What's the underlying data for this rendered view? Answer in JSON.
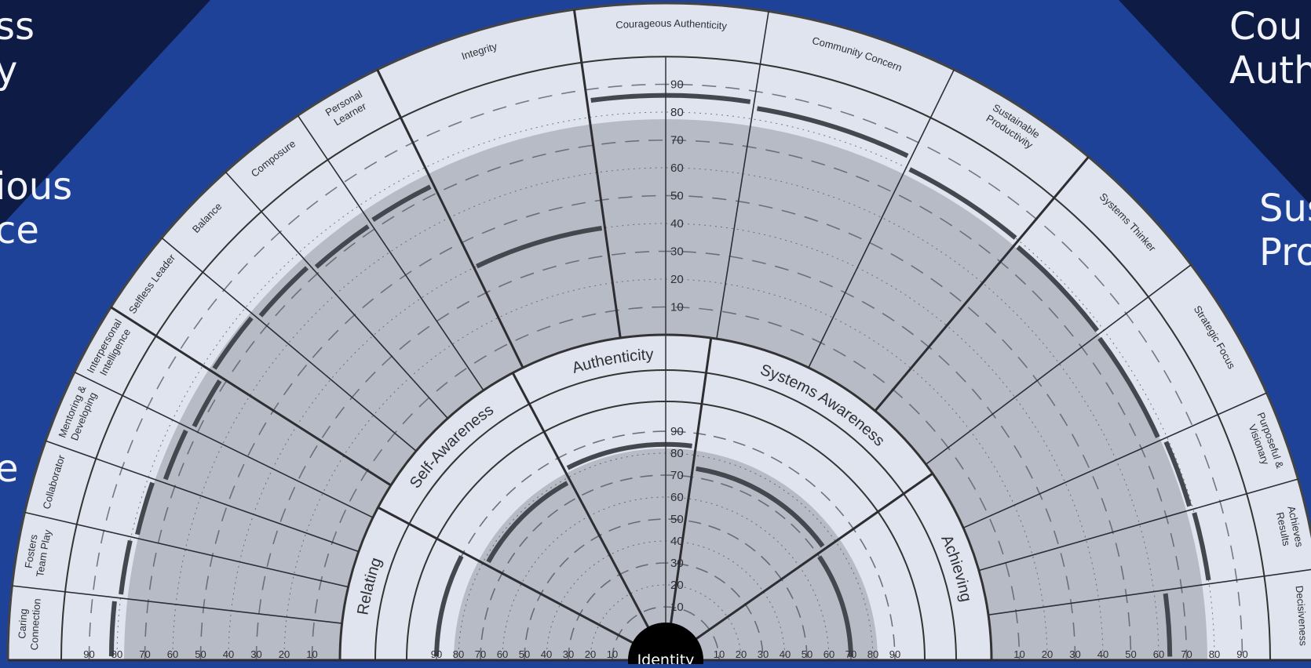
{
  "colors": {
    "background": "#1f4299",
    "corner_panel": "#0d1b45",
    "wheel_band": "#dfe4ee",
    "score_zone": "#b6bbc6",
    "highlight_band": "#c5cad4",
    "ink": "#2f2f34",
    "center_dot": "#000000",
    "label_text": "#f2f4fa"
  },
  "side_labels": {
    "left": [
      "ss\ny",
      "ious\nce",
      "e"
    ],
    "right": [
      "Cou\nAuth",
      "Sus\nPro"
    ]
  },
  "center": {
    "label": "Identity"
  },
  "inner_ring": {
    "dimensions": [
      {
        "label": "Relating"
      },
      {
        "label": "Self-Awareness"
      },
      {
        "label": "Authenticity"
      },
      {
        "label": "Systems Awareness"
      },
      {
        "label": "Achieving"
      }
    ],
    "tick_labels": [
      "90",
      "80",
      "70",
      "60",
      "50",
      "40",
      "30",
      "20",
      "10"
    ]
  },
  "outer_ring": {
    "competencies": [
      {
        "label": "Caring\nConnection"
      },
      {
        "label": "Fosters\nTeam Play"
      },
      {
        "label": "Collaborator"
      },
      {
        "label": "Mentoring &\nDeveloping"
      },
      {
        "label": "Interpersonal\nIntelligence"
      },
      {
        "label": "Selfless Leader"
      },
      {
        "label": "Balance"
      },
      {
        "label": "Composure"
      },
      {
        "label": "Personal\nLearner"
      },
      {
        "label": "Integrity"
      },
      {
        "label": "Courageous Authenticity"
      },
      {
        "label": "Community Concern"
      },
      {
        "label": "Sustainable\nProductivity"
      },
      {
        "label": "Systems Thinker"
      },
      {
        "label": "Strategic Focus"
      },
      {
        "label": "Purposeful &\nVisionary"
      },
      {
        "label": "Achieves\nResults"
      },
      {
        "label": "Decisiveness"
      }
    ],
    "tick_labels": [
      "90",
      "80",
      "70",
      "60",
      "50",
      "40",
      "30",
      "20",
      "10"
    ]
  }
}
